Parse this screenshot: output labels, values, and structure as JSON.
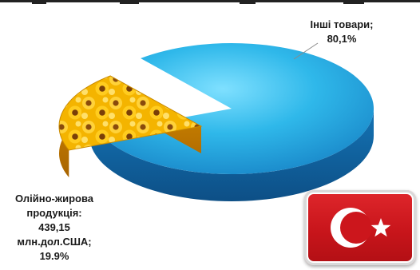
{
  "chart_data": {
    "type": "pie",
    "slices": [
      {
        "label": "Інші товари;",
        "value_label": "80,1%",
        "value": 80.1,
        "color": "#1fa9e3"
      },
      {
        "label": "Олійно-жирова продукція:",
        "amount": "439,15",
        "unit": "млн.дол.США;",
        "value_label": "19.9%",
        "value": 19.9,
        "fill": "sunflowers"
      }
    ]
  },
  "labels": {
    "other_name": "Інші товари;",
    "other_pct": "80,1%",
    "oil_line1": "Олійно-жирова",
    "oil_line2": "продукція:",
    "oil_amount": "439,15",
    "oil_unit": "млн.дол.США;",
    "oil_pct": "19.9%"
  },
  "flag": {
    "country_icon": "turkey-flag-icon",
    "bg_color": "#d7191f",
    "symbol_color": "#ffffff"
  }
}
